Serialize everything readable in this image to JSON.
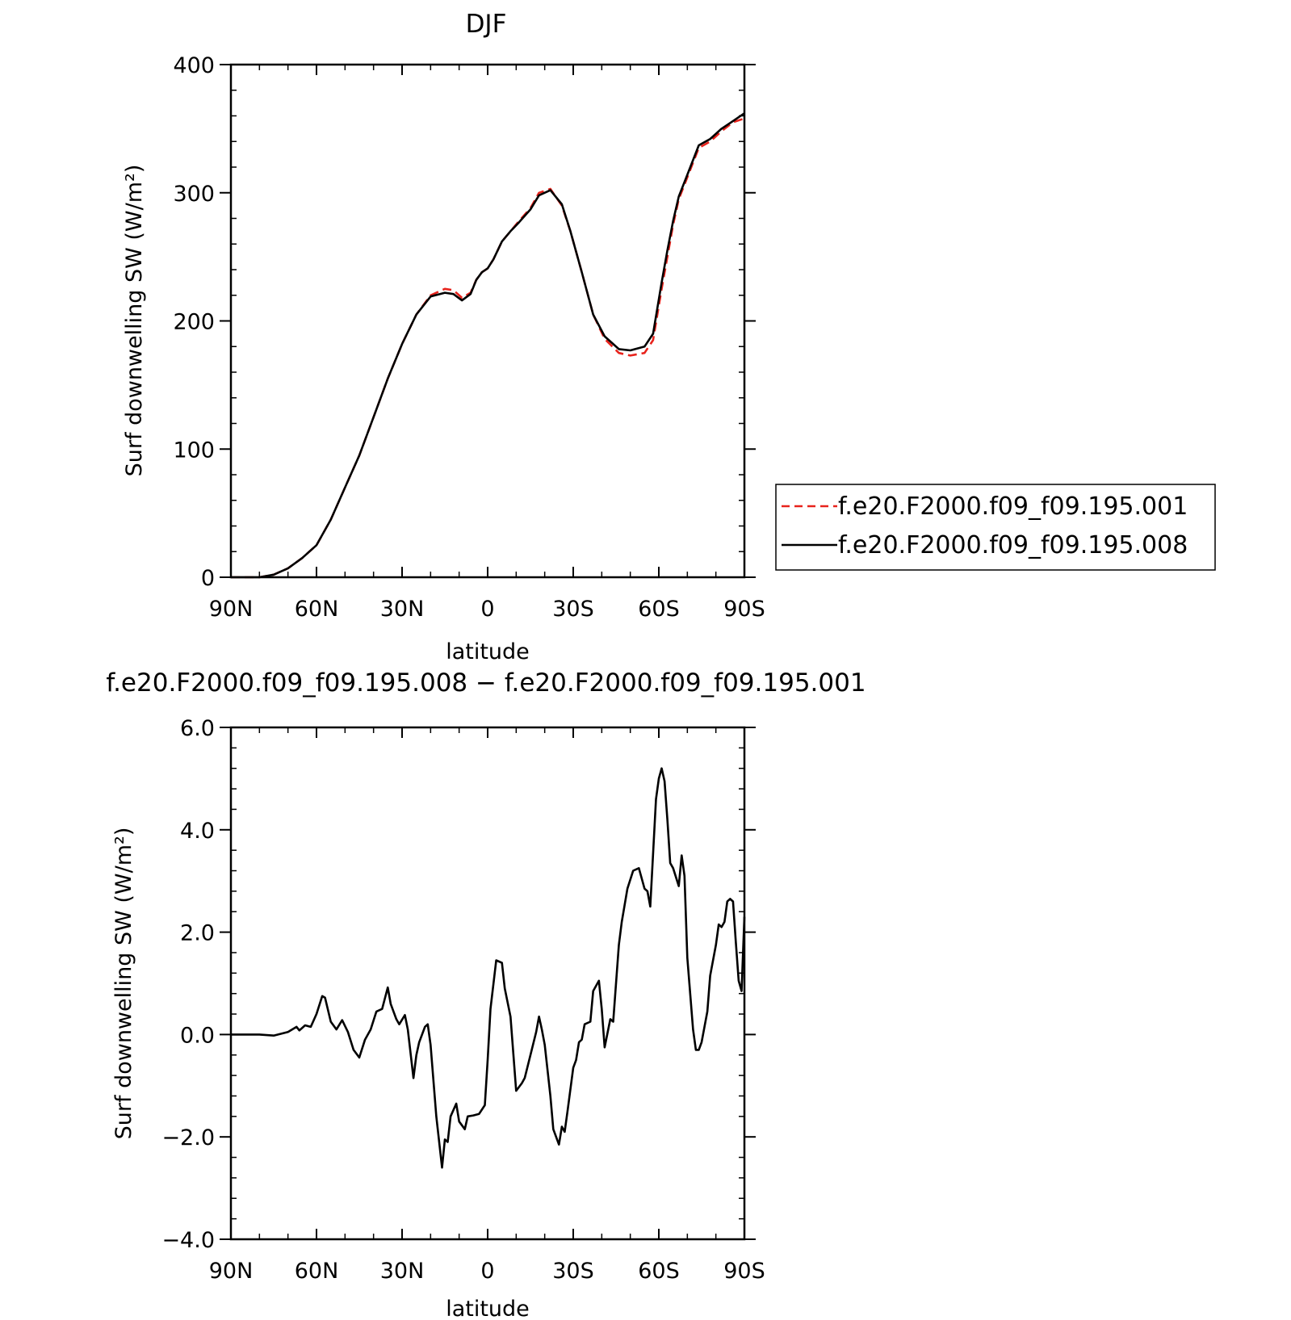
{
  "chart_data": [
    {
      "type": "line",
      "title": "DJF",
      "xlabel": "latitude",
      "ylabel": "Surf downwelling SW (W/m²)",
      "xlim": [
        -90,
        90
      ],
      "ylim": [
        0,
        400
      ],
      "xticks": [
        -90,
        -60,
        -30,
        0,
        30,
        60,
        90
      ],
      "xtick_labels": [
        "90N",
        "60N",
        "30N",
        "0",
        "30S",
        "60S",
        "90S"
      ],
      "yticks": [
        0,
        100,
        200,
        300,
        400
      ],
      "ytick_labels": [
        "0",
        "100",
        "200",
        "300",
        "400"
      ],
      "legend_position": "right",
      "series": [
        {
          "name": "f.e20.F2000.f09_f09.195.001",
          "color": "#e8231c",
          "dash": "dashed",
          "x": [
            -90,
            -80,
            -75,
            -70,
            -65,
            -60,
            -55,
            -50,
            -45,
            -40,
            -35,
            -30,
            -25,
            -20,
            -15,
            -12,
            -9,
            -6,
            -4,
            -2,
            0,
            2,
            5,
            8,
            11,
            15,
            18,
            22,
            26,
            29,
            33,
            37,
            41,
            46,
            50,
            55,
            58,
            61,
            63,
            65,
            67,
            70,
            74,
            78,
            82,
            86,
            90
          ],
          "y": [
            0,
            0,
            2,
            7,
            15,
            25,
            45,
            70,
            95,
            125,
            155,
            182,
            205,
            220,
            225,
            224,
            218,
            222,
            232,
            238,
            241,
            248,
            262,
            270,
            278,
            288,
            300,
            303,
            290,
            270,
            238,
            205,
            186,
            175,
            173,
            175,
            185,
            225,
            250,
            275,
            295,
            312,
            335,
            340,
            348,
            355,
            358
          ]
        },
        {
          "name": "f.e20.F2000.f09_f09.195.008",
          "color": "#000000",
          "dash": "solid",
          "x": [
            -90,
            -80,
            -75,
            -70,
            -65,
            -60,
            -55,
            -50,
            -45,
            -40,
            -35,
            -30,
            -25,
            -20,
            -15,
            -12,
            -9,
            -6,
            -4,
            -2,
            0,
            2,
            5,
            8,
            11,
            15,
            18,
            22,
            26,
            29,
            33,
            37,
            41,
            46,
            50,
            55,
            58,
            61,
            63,
            65,
            67,
            70,
            74,
            78,
            82,
            86,
            90
          ],
          "y": [
            0,
            0,
            2,
            7,
            15,
            25,
            45,
            70,
            95,
            125,
            155,
            182,
            205,
            219,
            222,
            221,
            216,
            221,
            232,
            238,
            241,
            248,
            262,
            270,
            277,
            287,
            298,
            302,
            291,
            270,
            238,
            205,
            188,
            178,
            177,
            180,
            190,
            230,
            255,
            278,
            297,
            314,
            337,
            342,
            350,
            356,
            362
          ]
        }
      ]
    },
    {
      "type": "line",
      "title": "f.e20.F2000.f09_f09.195.008 − f.e20.F2000.f09_f09.195.001",
      "xlabel": "latitude",
      "ylabel": "Surf downwelling SW (W/m²)",
      "xlim": [
        -90,
        90
      ],
      "ylim": [
        -4,
        6
      ],
      "xticks": [
        -90,
        -60,
        -30,
        0,
        30,
        60,
        90
      ],
      "xtick_labels": [
        "90N",
        "60N",
        "30N",
        "0",
        "30S",
        "60S",
        "90S"
      ],
      "yticks": [
        -4,
        -2,
        0,
        2,
        4,
        6
      ],
      "ytick_labels": [
        "−4.0",
        "−2.0",
        "0.0",
        "2.0",
        "4.0",
        "6.0"
      ],
      "series": [
        {
          "name": "",
          "color": "#000000",
          "dash": "solid",
          "x": [
            -90,
            -80,
            -75,
            -70,
            -67,
            -66,
            -64,
            -62,
            -60,
            -58,
            -57,
            -55,
            -53,
            -51,
            -49,
            -47,
            -45,
            -43,
            -41,
            -39,
            -37,
            -35,
            -34,
            -32,
            -31,
            -29,
            -28,
            -26,
            -25,
            -24,
            -22,
            -21,
            -20,
            -18,
            -16,
            -15,
            -14,
            -13,
            -11,
            -10,
            -8,
            -7,
            -5,
            -3,
            -1,
            0,
            1,
            3,
            5,
            6,
            8,
            10,
            12,
            13,
            15,
            17,
            18,
            19,
            20,
            22,
            23,
            25,
            26,
            27,
            28,
            30,
            31,
            32,
            33,
            34,
            36,
            37,
            39,
            40,
            41,
            43,
            44,
            46,
            47,
            49,
            51,
            53,
            55,
            56,
            57,
            59,
            60,
            61,
            62,
            63,
            64,
            65,
            67,
            68,
            69,
            70,
            72,
            73,
            74,
            75,
            77,
            78,
            80,
            81,
            82,
            83,
            84,
            85,
            86,
            87,
            88,
            89,
            90
          ],
          "y": [
            0,
            0,
            -0.02,
            0.05,
            0.15,
            0.08,
            0.18,
            0.15,
            0.4,
            0.75,
            0.72,
            0.25,
            0.1,
            0.28,
            0.05,
            -0.3,
            -0.45,
            -0.1,
            0.1,
            0.45,
            0.5,
            0.92,
            0.6,
            0.3,
            0.2,
            0.38,
            0.1,
            -0.85,
            -0.4,
            -0.15,
            0.15,
            0.2,
            -0.2,
            -1.6,
            -2.6,
            -2.05,
            -2.1,
            -1.6,
            -1.35,
            -1.7,
            -1.85,
            -1.6,
            -1.58,
            -1.55,
            -1.38,
            -0.5,
            0.5,
            1.45,
            1.4,
            0.9,
            0.35,
            -1.1,
            -0.95,
            -0.85,
            -0.4,
            0.05,
            0.35,
            0.1,
            -0.2,
            -1.2,
            -1.85,
            -2.15,
            -1.8,
            -1.9,
            -1.5,
            -0.65,
            -0.5,
            -0.15,
            -0.1,
            0.2,
            0.25,
            0.85,
            1.05,
            0.5,
            -0.25,
            0.3,
            0.25,
            1.75,
            2.2,
            2.85,
            3.2,
            3.25,
            2.85,
            2.8,
            2.5,
            4.6,
            5.0,
            5.2,
            4.95,
            4.2,
            3.35,
            3.25,
            2.9,
            3.5,
            3.1,
            1.5,
            0.1,
            -0.3,
            -0.3,
            -0.15,
            0.45,
            1.15,
            1.75,
            2.15,
            2.1,
            2.2,
            2.6,
            2.65,
            2.6,
            1.8,
            1.05,
            0.85,
            2.3
          ]
        }
      ]
    }
  ]
}
